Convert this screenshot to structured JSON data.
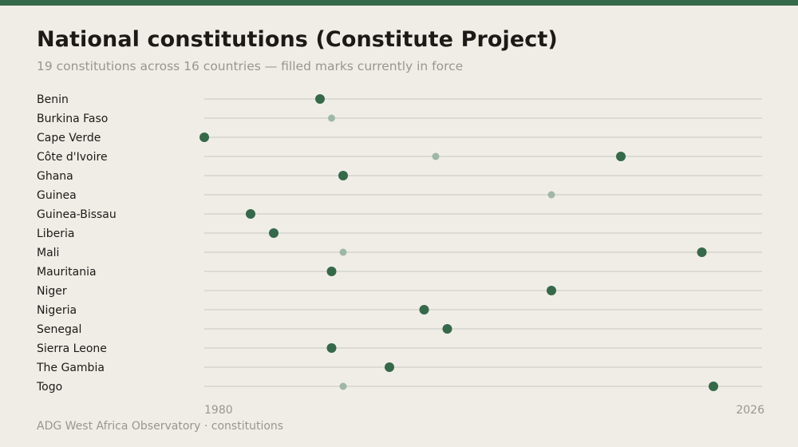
{
  "title": "National constitutions (Constitute Project)",
  "subtitle": "19 constitutions across 16 countries — filled marks currently in force",
  "footer": "ADG West Africa Observatory · constitutions",
  "colors": {
    "background": "#f0ede7",
    "accent": "#36684a",
    "in_force": "#36684a",
    "historical": "#9fb7a6",
    "gridline": "#c9c6c0",
    "label": "#1c1a17",
    "muted": "#9a968f"
  },
  "chart_data": {
    "type": "scatter",
    "title": "National constitutions (Constitute Project)",
    "subtitle": "19 constitutions across 16 countries — filled marks currently in force",
    "xlim": [
      1980,
      2026
    ],
    "x_ticks": [
      "1980",
      "2026"
    ],
    "grid": true,
    "categories": [
      "Benin",
      "Burkina Faso",
      "Cape Verde",
      "Côte d'Ivoire",
      "Ghana",
      "Guinea",
      "Guinea-Bissau",
      "Liberia",
      "Mali",
      "Mauritania",
      "Niger",
      "Nigeria",
      "Senegal",
      "Sierra Leone",
      "The Gambia",
      "Togo"
    ],
    "points": [
      {
        "country": "Benin",
        "year": 1990,
        "in_force": true
      },
      {
        "country": "Burkina Faso",
        "year": 1991,
        "in_force": false
      },
      {
        "country": "Cape Verde",
        "year": 1980,
        "in_force": true
      },
      {
        "country": "Côte d'Ivoire",
        "year": 2000,
        "in_force": false
      },
      {
        "country": "Côte d'Ivoire",
        "year": 2016,
        "in_force": true
      },
      {
        "country": "Ghana",
        "year": 1992,
        "in_force": true
      },
      {
        "country": "Guinea",
        "year": 2010,
        "in_force": false
      },
      {
        "country": "Guinea-Bissau",
        "year": 1984,
        "in_force": true
      },
      {
        "country": "Liberia",
        "year": 1986,
        "in_force": true
      },
      {
        "country": "Mali",
        "year": 1992,
        "in_force": false
      },
      {
        "country": "Mali",
        "year": 2023,
        "in_force": true
      },
      {
        "country": "Mauritania",
        "year": 1991,
        "in_force": true
      },
      {
        "country": "Niger",
        "year": 2010,
        "in_force": true
      },
      {
        "country": "Nigeria",
        "year": 1999,
        "in_force": true
      },
      {
        "country": "Senegal",
        "year": 2001,
        "in_force": true
      },
      {
        "country": "Sierra Leone",
        "year": 1991,
        "in_force": true
      },
      {
        "country": "The Gambia",
        "year": 1996,
        "in_force": true
      },
      {
        "country": "Togo",
        "year": 1992,
        "in_force": false
      },
      {
        "country": "Togo",
        "year": 2024,
        "in_force": true
      }
    ]
  }
}
